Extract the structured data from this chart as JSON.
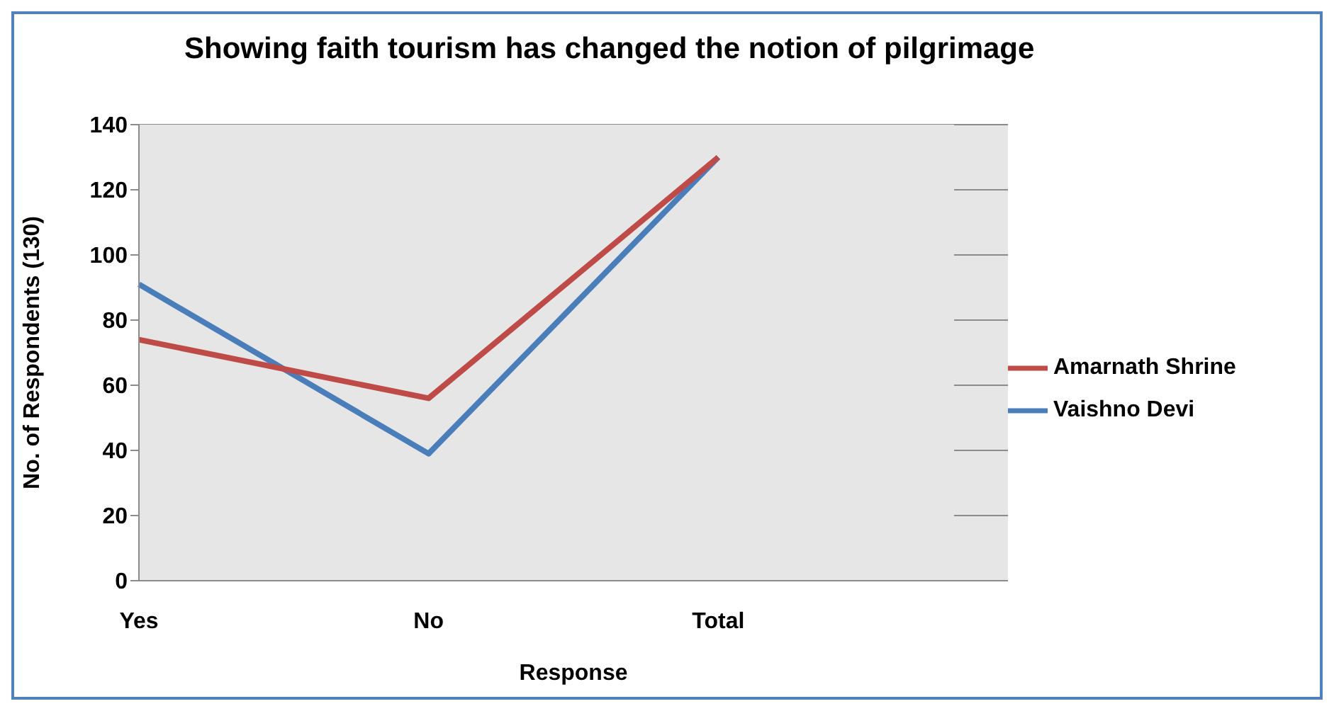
{
  "chart_data": {
    "type": "line",
    "title": "Showing faith tourism has changed the notion of pilgrimage",
    "xlabel": "Response",
    "ylabel": "No. of Respondents (130)",
    "categories": [
      "Yes",
      "No",
      "Total",
      null
    ],
    "series": [
      {
        "name": "Vaishno Devi",
        "color": "#4a7ebb",
        "values": [
          91,
          39,
          130,
          null
        ]
      },
      {
        "name": "Amarnath Shrine",
        "color": "#be4b48",
        "values": [
          74,
          56,
          130,
          null
        ]
      }
    ],
    "ylim": [
      0,
      140
    ],
    "yticks": [
      0,
      20,
      40,
      60,
      80,
      100,
      120,
      140
    ],
    "grid": "y",
    "legend": "right",
    "marker": "none",
    "line_style": "solid"
  }
}
